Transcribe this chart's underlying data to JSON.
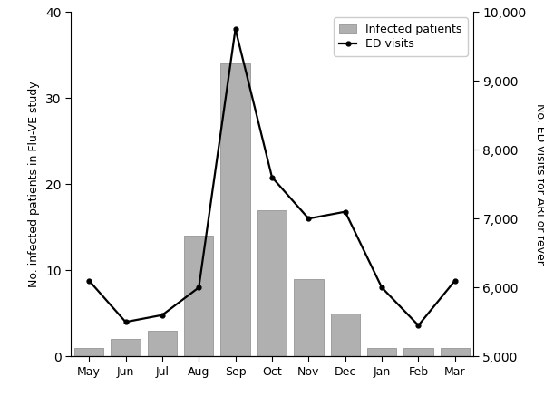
{
  "months": [
    "May",
    "Jun",
    "Jul",
    "Aug",
    "Sep",
    "Oct",
    "Nov",
    "Dec",
    "Jan",
    "Feb",
    "Mar"
  ],
  "bar_values": [
    1,
    2,
    3,
    14,
    34,
    17,
    9,
    5,
    1,
    1,
    1
  ],
  "line_values": [
    6100,
    5500,
    5600,
    6000,
    9750,
    7600,
    7000,
    7100,
    6000,
    5450,
    6100
  ],
  "bar_color": "#b0b0b0",
  "bar_edgecolor": "#888888",
  "line_color": "#000000",
  "left_ylabel": "No. infected patients in Flu-VE study",
  "right_ylabel": "No. ED visits for ARI or fever",
  "ylim_left": [
    0,
    40
  ],
  "ylim_right": [
    5000,
    10000
  ],
  "yticks_left": [
    0,
    10,
    20,
    30,
    40
  ],
  "yticks_right": [
    5000,
    6000,
    7000,
    8000,
    9000,
    10000
  ],
  "legend_labels": [
    "Infected patients",
    "ED visits"
  ],
  "bg_color": "#ffffff",
  "figsize": [
    6.0,
    4.37
  ],
  "dpi": 100
}
